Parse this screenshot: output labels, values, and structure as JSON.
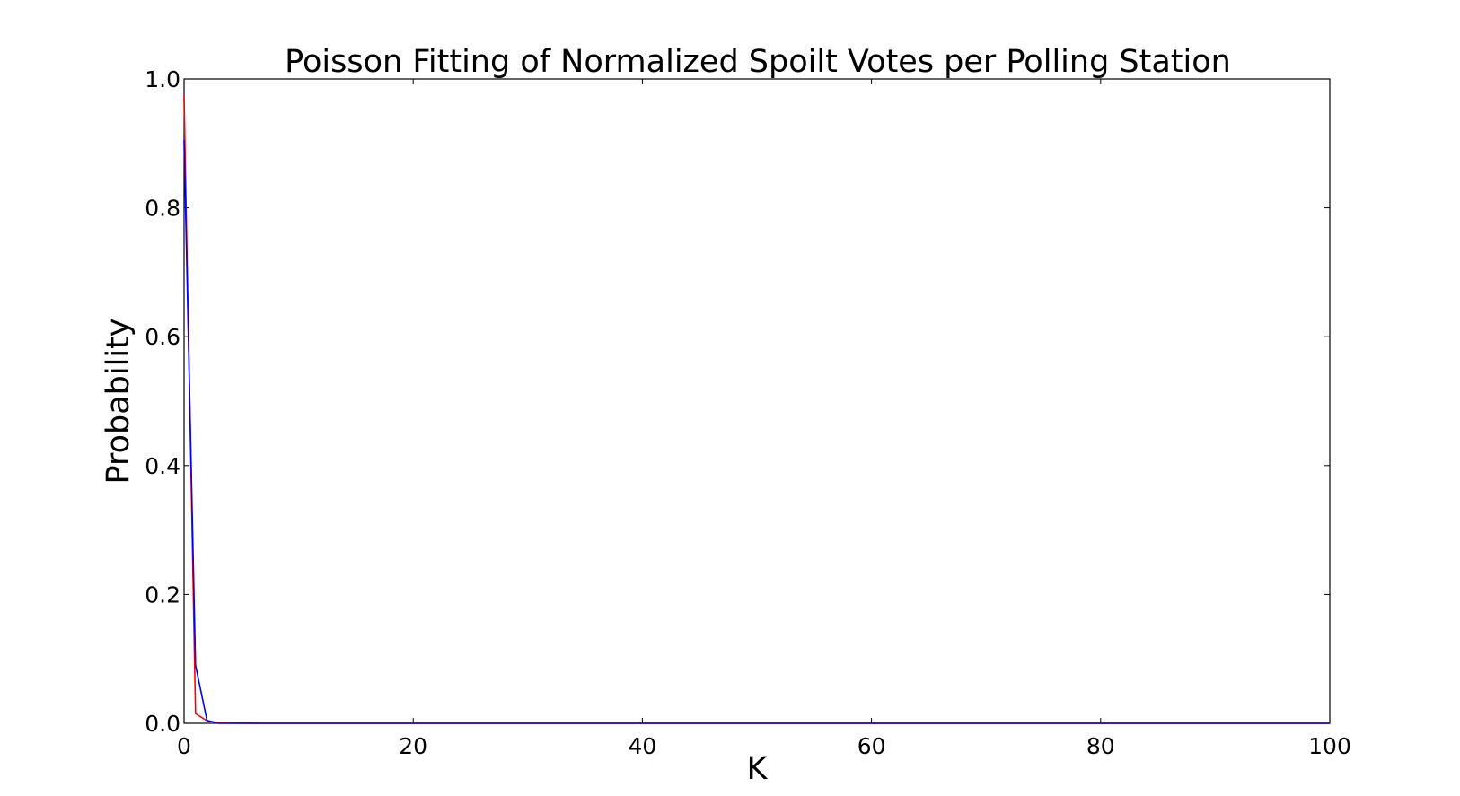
{
  "chart_data": {
    "type": "line",
    "title": "Poisson Fitting of Normalized Spoilt Votes per Polling Station",
    "xlabel": "K",
    "ylabel": "Probability",
    "xlim": [
      0,
      100
    ],
    "ylim": [
      0,
      1.0
    ],
    "x_ticks": [
      0,
      20,
      40,
      60,
      80,
      100
    ],
    "x_tick_labels": [
      "0",
      "20",
      "40",
      "60",
      "80",
      "100"
    ],
    "y_ticks": [
      0.0,
      0.2,
      0.4,
      0.6,
      0.8,
      1.0
    ],
    "y_tick_labels": [
      "0.0",
      "0.2",
      "0.4",
      "0.6",
      "0.8",
      "1.0"
    ],
    "grid": false,
    "legend": "none",
    "series": [
      {
        "color": "#ff0000",
        "x": [
          0,
          1,
          2,
          3,
          4,
          5,
          6,
          7,
          8,
          9,
          10,
          15,
          20,
          30,
          40,
          50,
          60,
          70,
          80,
          90,
          100
        ],
        "y": [
          0.972,
          0.015,
          0.004,
          0.001,
          0.0005,
          0.0002,
          0.0001,
          0,
          0,
          0,
          0,
          0,
          0,
          0,
          0,
          0,
          0,
          0,
          0,
          0,
          0
        ]
      },
      {
        "color": "#0000ff",
        "x": [
          0,
          1,
          2,
          3,
          4,
          5,
          6,
          7,
          8,
          9,
          10,
          15,
          20,
          30,
          40,
          50,
          60,
          70,
          80,
          90,
          100
        ],
        "y": [
          0.905,
          0.09,
          0.0045,
          0.00015,
          0,
          0,
          0,
          0,
          0,
          0,
          0,
          0,
          0,
          0,
          0,
          0,
          0,
          0,
          0,
          0,
          0
        ]
      }
    ]
  }
}
